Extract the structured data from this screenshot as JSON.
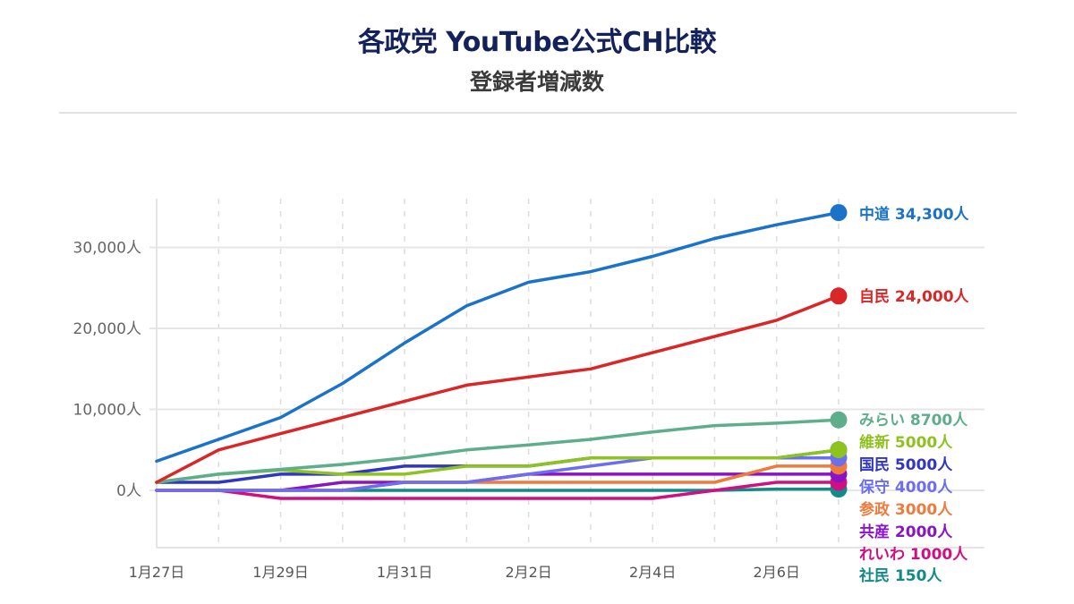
{
  "header": {
    "title": "各政党 YouTube公式CH比較",
    "subtitle": "登録者増減数"
  },
  "chart_data": {
    "type": "line",
    "title": "各政党 YouTube公式CH比較",
    "subtitle": "登録者増減数",
    "xlabel": "",
    "ylabel": "",
    "x": [
      "1月27日",
      "1月28日",
      "1月29日",
      "1月30日",
      "1月31日",
      "2月1日",
      "2月2日",
      "2月3日",
      "2月4日",
      "2月5日",
      "2月6日",
      "2月7日"
    ],
    "x_tick_labels": [
      "1月27日",
      "1月29日",
      "1月31日",
      "2月2日",
      "2月4日",
      "2月6日"
    ],
    "y_ticks": [
      0,
      10000,
      20000,
      30000
    ],
    "y_tick_labels": [
      "0人",
      "10,000人",
      "20,000人",
      "30,000人"
    ],
    "ylim": [
      -7000,
      36000
    ],
    "grid": {
      "horizontal": true,
      "vertical_dashed": true
    },
    "legend_position": "end-labels-right",
    "series": [
      {
        "name": "中道",
        "end_label": "中道 34,300人",
        "color": "#1a73c8",
        "values": [
          3600,
          6300,
          9000,
          13200,
          18200,
          22800,
          25700,
          27000,
          28900,
          31100,
          32800,
          34300
        ]
      },
      {
        "name": "自民",
        "end_label": "自民 24,000人",
        "color": "#d92626",
        "values": [
          1000,
          5000,
          7000,
          9000,
          11000,
          13000,
          14000,
          15000,
          17000,
          19000,
          21000,
          24000
        ]
      },
      {
        "name": "みらい",
        "end_label": "みらい 8700人",
        "color": "#5eae8c",
        "values": [
          1000,
          2000,
          2600,
          3200,
          4000,
          5000,
          5600,
          6300,
          7200,
          8000,
          8300,
          8700
        ]
      },
      {
        "name": "維新",
        "end_label": "維新 5000人",
        "color": "#8dc21f",
        "values": [
          1000,
          2000,
          2500,
          2000,
          2000,
          3000,
          3000,
          4000,
          4000,
          4000,
          4000,
          5000
        ]
      },
      {
        "name": "国民",
        "end_label": "国民 5000人",
        "color": "#2f35c4",
        "values": [
          1000,
          1000,
          2000,
          2000,
          3000,
          3000,
          3000,
          4000,
          4000,
          4000,
          4000,
          5000
        ]
      },
      {
        "name": "保守",
        "end_label": "保守 4000人",
        "color": "#6b6ef0",
        "values": [
          0,
          0,
          0,
          0,
          1000,
          1000,
          2000,
          3000,
          4000,
          4000,
          4000,
          4000
        ]
      },
      {
        "name": "参政",
        "end_label": "参政 3000人",
        "color": "#ef7a3c",
        "values": [
          0,
          0,
          0,
          0,
          1000,
          1000,
          1000,
          1000,
          1000,
          1000,
          3000,
          3000
        ]
      },
      {
        "name": "共産",
        "end_label": "共産 2000人",
        "color": "#8a14c4",
        "values": [
          0,
          0,
          0,
          1000,
          1000,
          1000,
          2000,
          2000,
          2000,
          2000,
          2000,
          2000
        ]
      },
      {
        "name": "れいわ",
        "end_label": "れいわ 1000人",
        "color": "#d01080",
        "values": [
          0,
          0,
          -1000,
          -1000,
          -1000,
          -1000,
          -1000,
          -1000,
          -1000,
          0,
          1000,
          1000
        ]
      },
      {
        "name": "社民",
        "end_label": "社民 150人",
        "color": "#138a8a",
        "values": [
          0,
          0,
          0,
          0,
          0,
          0,
          0,
          0,
          0,
          0,
          150,
          150
        ]
      }
    ]
  }
}
